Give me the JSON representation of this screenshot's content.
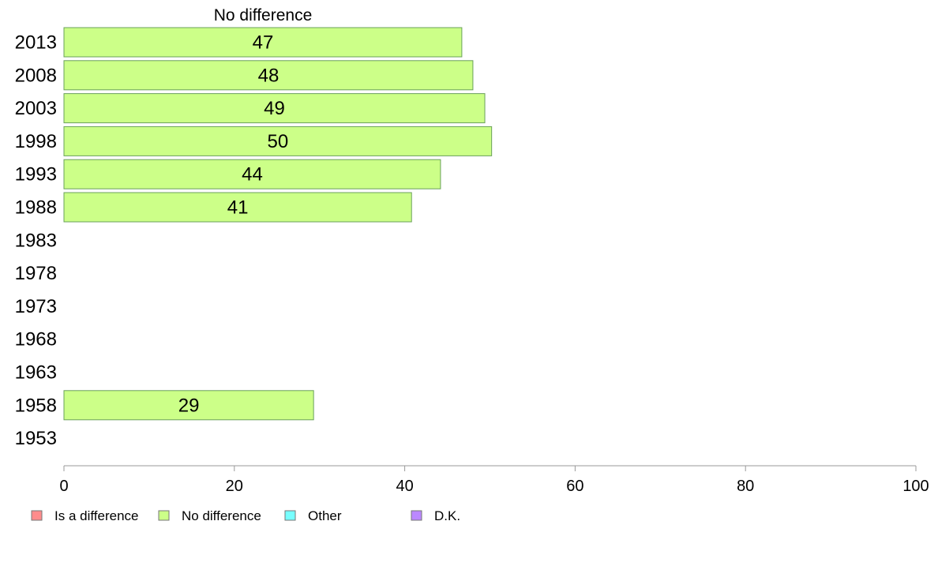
{
  "chart_data": {
    "type": "bar",
    "orientation": "horizontal",
    "title": "No difference",
    "categories": [
      "2013",
      "2008",
      "2003",
      "1998",
      "1993",
      "1988",
      "1983",
      "1978",
      "1973",
      "1968",
      "1963",
      "1958",
      "1953"
    ],
    "series": [
      {
        "name": "No difference",
        "color": "#ccff88",
        "values": [
          46.7,
          48.0,
          49.4,
          50.2,
          44.2,
          40.8,
          null,
          null,
          null,
          null,
          null,
          29.3,
          null
        ],
        "labels": [
          "47",
          "48",
          "49",
          "50",
          "44",
          "41",
          "",
          "",
          "",
          "",
          "",
          "29",
          ""
        ]
      }
    ],
    "xlim": [
      0,
      100
    ],
    "xticks": [
      0,
      20,
      40,
      60,
      80,
      100
    ],
    "legend": {
      "placement": "bottom-left",
      "items": [
        {
          "label": "Is a difference",
          "color": "#ff8c8c"
        },
        {
          "label": "No difference",
          "color": "#ccff88"
        },
        {
          "label": "Other",
          "color": "#77ffff"
        },
        {
          "label": "D.K.",
          "color": "#bb88ff"
        }
      ]
    },
    "grid": false
  }
}
